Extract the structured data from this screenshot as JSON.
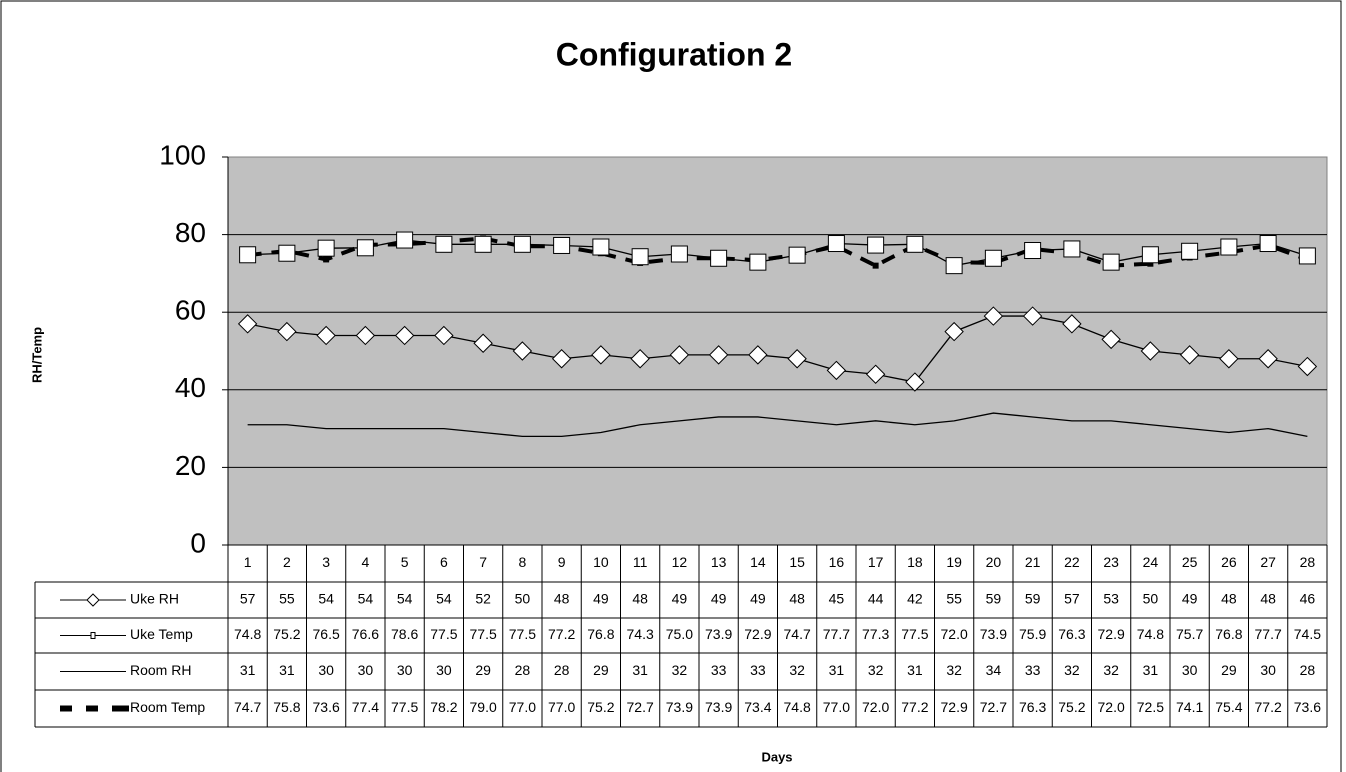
{
  "chart_data": {
    "type": "line",
    "title": "Configuration 2",
    "ylabel": "RH/Temp",
    "xlabel": "Days",
    "categories": [
      "1",
      "2",
      "3",
      "4",
      "5",
      "6",
      "7",
      "8",
      "9",
      "10",
      "11",
      "12",
      "13",
      "14",
      "15",
      "16",
      "17",
      "18",
      "19",
      "20",
      "21",
      "22",
      "23",
      "24",
      "25",
      "26",
      "27",
      "28"
    ],
    "ylim": [
      0,
      100
    ],
    "yticks": [
      0,
      20,
      40,
      60,
      80,
      100
    ],
    "grid": true,
    "plot_background": "#c0c0c0",
    "series": [
      {
        "name": "Uke RH",
        "color": "#000000",
        "marker": "diamond",
        "values": [
          57,
          55,
          54,
          54,
          54,
          54,
          52,
          50,
          48,
          49,
          48,
          49,
          49,
          49,
          48,
          45,
          44,
          42,
          55,
          59,
          59,
          57,
          53,
          50,
          49,
          48,
          48,
          46
        ]
      },
      {
        "name": "Uke Temp",
        "color": "#000000",
        "marker": "square",
        "values": [
          74.8,
          75.2,
          76.5,
          76.6,
          78.6,
          77.5,
          77.5,
          77.5,
          77.2,
          76.8,
          74.3,
          75.0,
          73.9,
          72.9,
          74.7,
          77.7,
          77.3,
          77.5,
          72.0,
          73.9,
          75.9,
          76.3,
          72.9,
          74.8,
          75.7,
          76.8,
          77.7,
          74.5
        ],
        "value_labels": [
          "74.8",
          "75.2",
          "76.5",
          "76.6",
          "78.6",
          "77.5",
          "77.5",
          "77.5",
          "77.2",
          "76.8",
          "74.3",
          "75.0",
          "73.9",
          "72.9",
          "74.7",
          "77.7",
          "77.3",
          "77.5",
          "72.0",
          "73.9",
          "75.9",
          "76.3",
          "72.9",
          "74.8",
          "75.7",
          "76.8",
          "77.7",
          "74.5"
        ]
      },
      {
        "name": "Room RH",
        "color": "#000000",
        "marker": "none",
        "values": [
          31,
          31,
          30,
          30,
          30,
          30,
          29,
          28,
          28,
          29,
          31,
          32,
          33,
          33,
          32,
          31,
          32,
          31,
          32,
          34,
          33,
          32,
          32,
          31,
          30,
          29,
          30,
          28
        ]
      },
      {
        "name": "Room Temp",
        "color": "#000000",
        "marker": "small-square",
        "dashed": true,
        "values": [
          74.7,
          75.8,
          73.6,
          77.4,
          77.5,
          78.2,
          79.0,
          77.0,
          77.0,
          75.2,
          72.7,
          73.9,
          73.9,
          73.4,
          74.8,
          77.0,
          72.0,
          77.2,
          72.9,
          72.7,
          76.3,
          75.2,
          72.0,
          72.5,
          74.1,
          75.4,
          77.2,
          73.6
        ],
        "value_labels": [
          "74.7",
          "75.8",
          "73.6",
          "77.4",
          "77.5",
          "78.2",
          "79.0",
          "77.0",
          "77.0",
          "75.2",
          "72.7",
          "73.9",
          "73.9",
          "73.4",
          "74.8",
          "77.0",
          "72.0",
          "77.2",
          "72.9",
          "72.7",
          "76.3",
          "75.2",
          "72.0",
          "72.5",
          "74.1",
          "75.4",
          "77.2",
          "73.6"
        ]
      }
    ]
  }
}
